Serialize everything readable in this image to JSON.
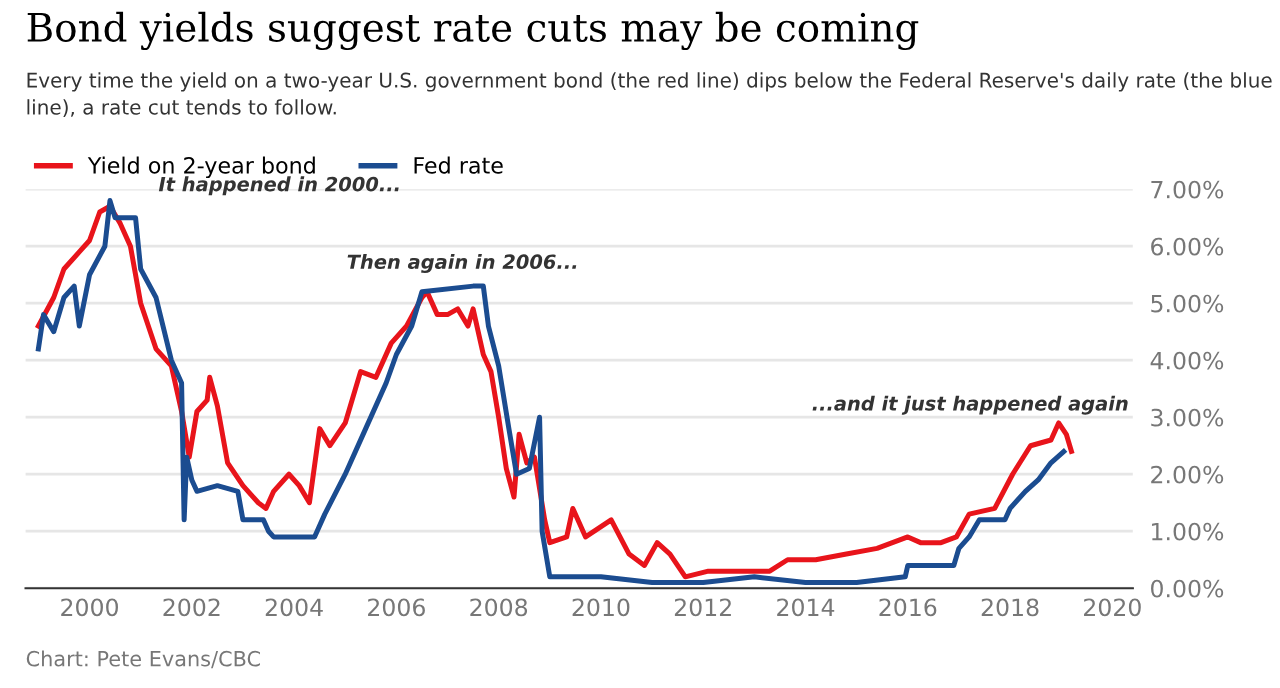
{
  "chart_data": {
    "type": "line",
    "title": "Bond yields suggest rate cuts may be coming",
    "subtitle": "Every time the yield on a two-year U.S. government bond (the red line) dips below the Federal Reserve's daily rate (the blue line), a rate cut tends to follow.",
    "series": [
      {
        "name": "Yield on 2-year bond",
        "color": "#e8141b",
        "x": [
          1999.0,
          1999.3,
          1999.5,
          1999.8,
          2000.0,
          2000.2,
          2000.4,
          2000.6,
          2000.8,
          2001.0,
          2001.3,
          2001.6,
          2001.8,
          2001.95,
          2002.1,
          2002.3,
          2002.35,
          2002.5,
          2002.7,
          2003.0,
          2003.3,
          2003.45,
          2003.6,
          2003.9,
          2004.1,
          2004.3,
          2004.5,
          2004.7,
          2005.0,
          2005.3,
          2005.6,
          2005.9,
          2006.2,
          2006.5,
          2006.6,
          2006.8,
          2007.0,
          2007.2,
          2007.4,
          2007.5,
          2007.7,
          2007.85,
          2008.0,
          2008.15,
          2008.3,
          2008.4,
          2008.55,
          2008.7,
          2008.9,
          2009.0,
          2009.33,
          2009.45,
          2009.7,
          2010.2,
          2010.55,
          2010.85,
          2011.1,
          2011.35,
          2011.65,
          2012.1,
          2012.6,
          2013.3,
          2013.65,
          2014.2,
          2014.8,
          2015.4,
          2016.0,
          2016.25,
          2016.65,
          2016.95,
          2017.2,
          2017.7,
          2018.05,
          2018.4,
          2018.8,
          2018.95,
          2019.1,
          2019.2
        ],
        "values": [
          4.6,
          5.1,
          5.6,
          5.9,
          6.1,
          6.6,
          6.7,
          6.4,
          6.0,
          5.0,
          4.2,
          3.9,
          3.1,
          2.3,
          3.1,
          3.3,
          3.7,
          3.2,
          2.2,
          1.8,
          1.5,
          1.4,
          1.7,
          2.0,
          1.8,
          1.5,
          2.8,
          2.5,
          2.9,
          3.8,
          3.7,
          4.3,
          4.6,
          5.1,
          5.2,
          4.8,
          4.8,
          4.9,
          4.6,
          4.9,
          4.1,
          3.8,
          3.0,
          2.1,
          1.6,
          2.7,
          2.2,
          2.3,
          1.2,
          0.8,
          0.9,
          1.4,
          0.9,
          1.2,
          0.6,
          0.4,
          0.8,
          0.6,
          0.2,
          0.3,
          0.3,
          0.3,
          0.5,
          0.5,
          0.6,
          0.7,
          0.9,
          0.8,
          0.8,
          0.9,
          1.3,
          1.4,
          2.0,
          2.5,
          2.6,
          2.9,
          2.7,
          2.4
        ]
      },
      {
        "name": "Fed rate",
        "color": "#1b4c90",
        "x": [
          1999.0,
          1999.1,
          1999.3,
          1999.5,
          1999.7,
          1999.8,
          2000.0,
          2000.3,
          2000.4,
          2000.5,
          2000.9,
          2001.0,
          2001.3,
          2001.6,
          2001.8,
          2001.85,
          2001.9,
          2002.0,
          2002.1,
          2002.5,
          2002.9,
          2003.0,
          2003.4,
          2003.5,
          2003.6,
          2004.4,
          2004.6,
          2005.0,
          2005.4,
          2005.8,
          2006.0,
          2006.3,
          2006.5,
          2007.5,
          2007.7,
          2007.8,
          2008.0,
          2008.2,
          2008.35,
          2008.6,
          2008.8,
          2008.85,
          2009.0,
          2009.2,
          2010.0,
          2011.0,
          2012.0,
          2013.0,
          2014.0,
          2015.0,
          2015.95,
          2016.0,
          2016.9,
          2017.0,
          2017.2,
          2017.4,
          2017.9,
          2018.0,
          2018.3,
          2018.55,
          2018.8,
          2019.05
        ],
        "values": [
          4.2,
          4.8,
          4.5,
          5.1,
          5.3,
          4.6,
          5.5,
          6.0,
          6.8,
          6.5,
          6.5,
          5.6,
          5.1,
          4.0,
          3.6,
          1.2,
          2.3,
          1.9,
          1.7,
          1.8,
          1.7,
          1.2,
          1.2,
          1.0,
          0.9,
          0.9,
          1.3,
          2.0,
          2.8,
          3.6,
          4.1,
          4.6,
          5.2,
          5.3,
          5.3,
          4.6,
          3.9,
          2.8,
          2.0,
          2.1,
          3.0,
          1.0,
          0.2,
          0.2,
          0.2,
          0.1,
          0.1,
          0.2,
          0.1,
          0.1,
          0.2,
          0.4,
          0.4,
          0.7,
          0.9,
          1.2,
          1.2,
          1.4,
          1.7,
          1.9,
          2.2,
          2.4
        ]
      }
    ],
    "xlim": [
      1998.75,
      2020.4
    ],
    "xticks": [
      2000,
      2002,
      2004,
      2006,
      2008,
      2010,
      2012,
      2014,
      2016,
      2018,
      2020
    ],
    "ylim": [
      0,
      7
    ],
    "yticks": [
      {
        "value": 0,
        "label": "0.00%"
      },
      {
        "value": 1,
        "label": "1.00%"
      },
      {
        "value": 2,
        "label": "2.00%"
      },
      {
        "value": 3,
        "label": "3.00%"
      },
      {
        "value": 4,
        "label": "4.00%"
      },
      {
        "value": 5,
        "label": "5.00%"
      },
      {
        "value": 6,
        "label": "6.00%"
      },
      {
        "value": 7,
        "label": "7.00%"
      }
    ],
    "grid": "y",
    "legend": "top left",
    "annotations": [
      "It happened in 2000...",
      "Then again in 2006...",
      "...and it just happened again",
      "Chart: Pete Evans/CBC"
    ]
  }
}
